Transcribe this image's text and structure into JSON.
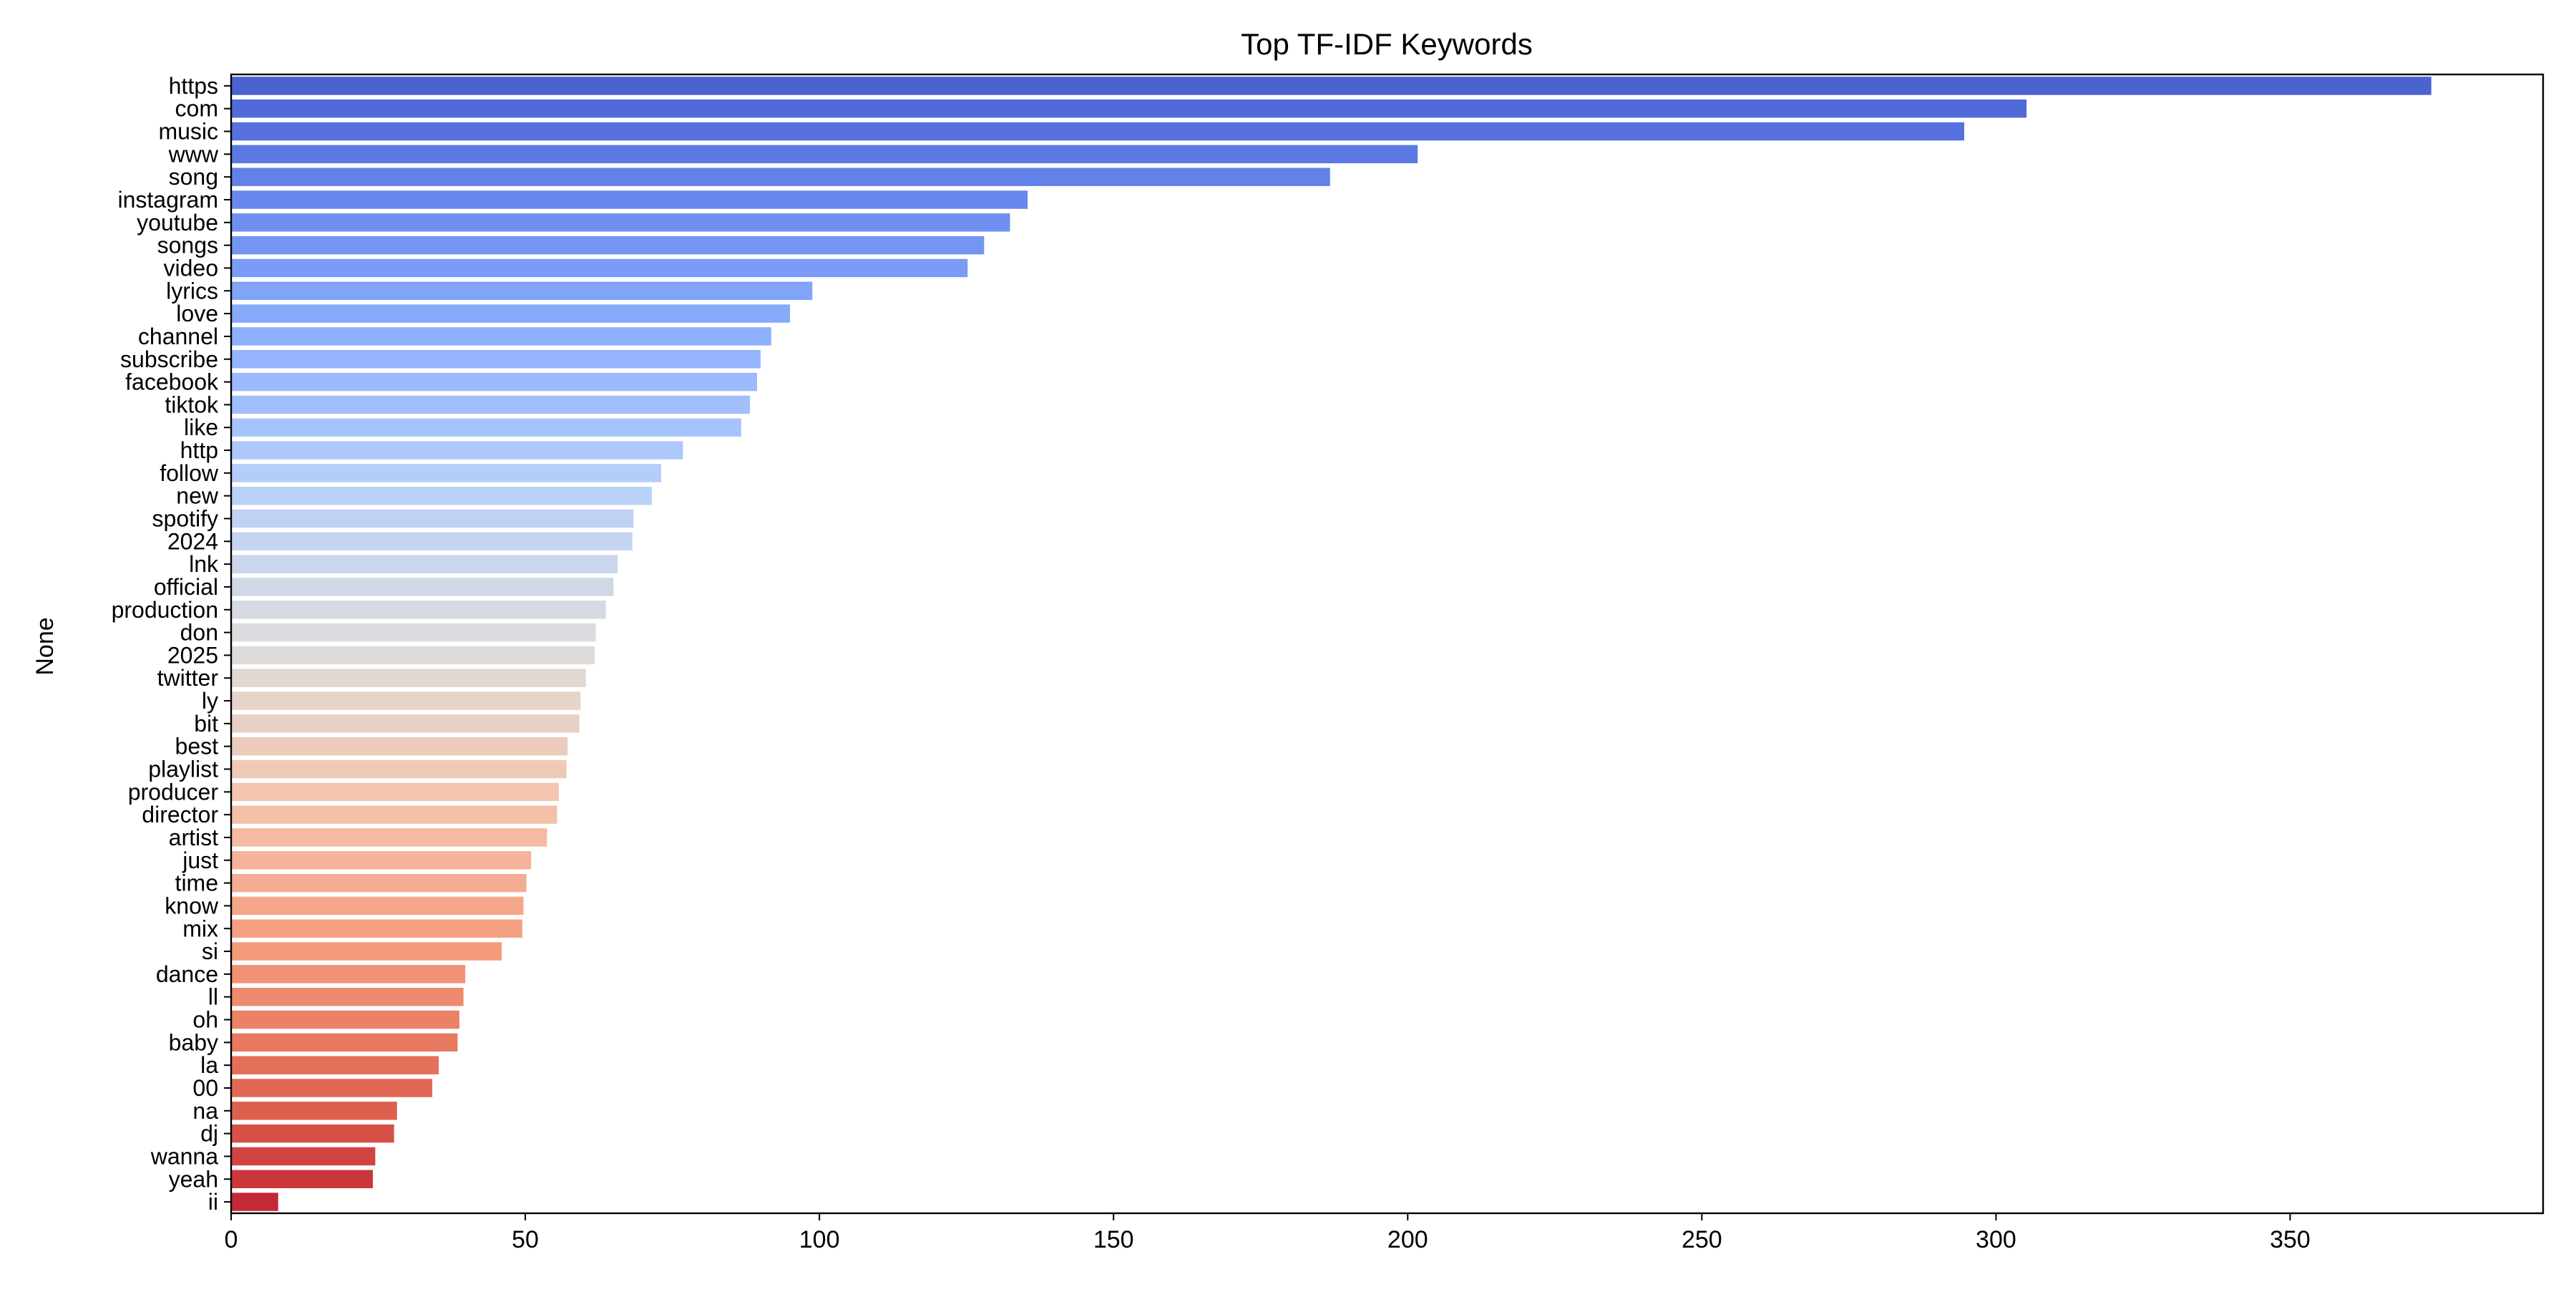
{
  "chart_data": {
    "type": "bar",
    "orientation": "horizontal",
    "title": "Top TF-IDF Keywords",
    "xlabel": "",
    "ylabel": "None",
    "xlim": [
      0,
      393
    ],
    "xticks": [
      "0",
      "50",
      "100",
      "150",
      "200",
      "250",
      "300",
      "350"
    ],
    "xtick_values": [
      0,
      50,
      100,
      150,
      200,
      250,
      300,
      350
    ],
    "grid": false,
    "legend": "none",
    "colormap": "coolwarm",
    "categories": [
      "https",
      "com",
      "music",
      "www",
      "song",
      "instagram",
      "youtube",
      "songs",
      "video",
      "lyrics",
      "love",
      "channel",
      "subscribe",
      "facebook",
      "tiktok",
      "like",
      "http",
      "follow",
      "new",
      "spotify",
      "2024",
      "lnk",
      "official",
      "production",
      "don",
      "2025",
      "twitter",
      "ly",
      "bit",
      "best",
      "playlist",
      "producer",
      "director",
      "artist",
      "just",
      "time",
      "know",
      "mix",
      "si",
      "dance",
      "ll",
      "oh",
      "baby",
      "la",
      "00",
      "na",
      "dj",
      "wanna",
      "yeah",
      "ii"
    ],
    "values": [
      374,
      305.2,
      294.6,
      201.7,
      186.8,
      135.4,
      132.4,
      128,
      125.2,
      98.8,
      95,
      91.8,
      90,
      89.4,
      88.2,
      86.7,
      76.8,
      73.1,
      71.5,
      68.4,
      68.2,
      65.7,
      65,
      63.7,
      62,
      61.8,
      60.3,
      59.4,
      59.2,
      57.2,
      57,
      55.7,
      55.4,
      53.7,
      51,
      50.2,
      49.7,
      49.5,
      46,
      39.8,
      39.5,
      38.8,
      38.5,
      35.3,
      34.2,
      28.2,
      27.7,
      24.5,
      24.1,
      8
    ]
  }
}
